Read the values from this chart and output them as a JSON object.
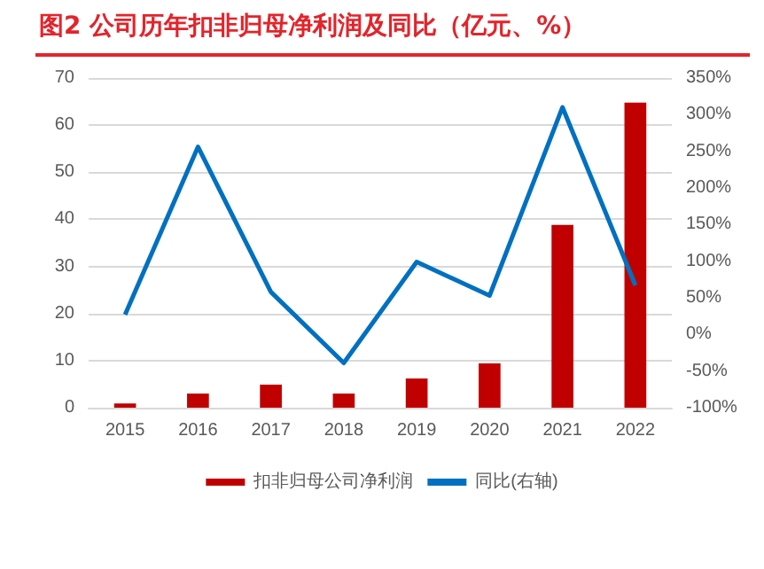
{
  "chart_data": {
    "type": "bar",
    "title": "图2  公司历年扣非归母净利润及同比（亿元、%）",
    "categories": [
      "2015",
      "2016",
      "2017",
      "2018",
      "2019",
      "2020",
      "2021",
      "2022"
    ],
    "series": [
      {
        "name": "扣非归母公司净利润",
        "color": "#c00000",
        "values": [
          0.9,
          3,
          4.9,
          3,
          6.2,
          9.4,
          38.8,
          64.8
        ]
      },
      {
        "name": "同比(右轴)",
        "type": "line",
        "axis": "y2",
        "color": "#0070c0",
        "values": [
          27,
          256,
          58,
          -39,
          99,
          53,
          310,
          67
        ]
      }
    ],
    "ylim": [
      0,
      70
    ],
    "yticks": [
      0,
      10,
      20,
      30,
      40,
      50,
      60,
      70
    ],
    "y2lim": [
      -100,
      350
    ],
    "y2ticks": [
      {
        "value": -100,
        "label": "-100%"
      },
      {
        "value": -50,
        "label": "-50%"
      },
      {
        "value": 0,
        "label": "0%"
      },
      {
        "value": 50,
        "label": "50%"
      },
      {
        "value": 100,
        "label": "100%"
      },
      {
        "value": 150,
        "label": "150%"
      },
      {
        "value": 200,
        "label": "200%"
      },
      {
        "value": 250,
        "label": "250%"
      },
      {
        "value": 300,
        "label": "300%"
      },
      {
        "value": 350,
        "label": "350%"
      }
    ],
    "grid": "y",
    "legend": "bottom",
    "marker": "none"
  }
}
